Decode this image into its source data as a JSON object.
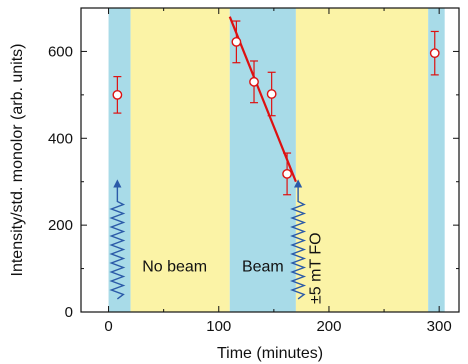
{
  "chart_data": {
    "type": "scatter",
    "title": "",
    "xlabel": "Time (minutes)",
    "ylabel": "Intensity/std. monolor (arb. units)",
    "xlim": [
      -25,
      318
    ],
    "ylim": [
      0,
      700
    ],
    "x_ticks": [
      0,
      100,
      200,
      300
    ],
    "y_ticks": [
      0,
      200,
      400,
      600
    ],
    "grid": false,
    "legend": "none",
    "regions": [
      {
        "x0": 0,
        "x1": 20,
        "kind": "beam",
        "color": "#a8dbe8"
      },
      {
        "x0": 20,
        "x1": 110,
        "kind": "no-beam",
        "color": "#fbf3a6"
      },
      {
        "x0": 110,
        "x1": 170,
        "kind": "beam",
        "color": "#a8dbe8"
      },
      {
        "x0": 170,
        "x1": 290,
        "kind": "no-beam",
        "color": "#fbf3a6"
      },
      {
        "x0": 290,
        "x1": 305,
        "kind": "beam",
        "color": "#a8dbe8"
      }
    ],
    "series": [
      {
        "color": "#dd1111",
        "points": [
          {
            "x": 8,
            "y": 500,
            "err": 42
          },
          {
            "x": 116,
            "y": 622,
            "err": 48
          },
          {
            "x": 132,
            "y": 530,
            "err": 48
          },
          {
            "x": 148,
            "y": 502,
            "err": 50
          },
          {
            "x": 162,
            "y": 318,
            "err": 48
          },
          {
            "x": 296,
            "y": 596,
            "err": 50
          }
        ]
      }
    ],
    "fit_line": {
      "x": [
        110,
        170
      ],
      "y": [
        680,
        300
      ],
      "color": "#dd1111"
    },
    "annotations": [
      {
        "text": "No beam",
        "x": 60,
        "y": 105
      },
      {
        "text": "Beam",
        "x": 140,
        "y": 105
      },
      {
        "text": "±5 mT FO",
        "x": 188,
        "y": 105,
        "rotated": true
      }
    ],
    "arrows": [
      {
        "x": 8,
        "y_from": 30,
        "y_to": 305
      },
      {
        "x": 172,
        "y_from": 30,
        "y_to": 305
      }
    ]
  }
}
